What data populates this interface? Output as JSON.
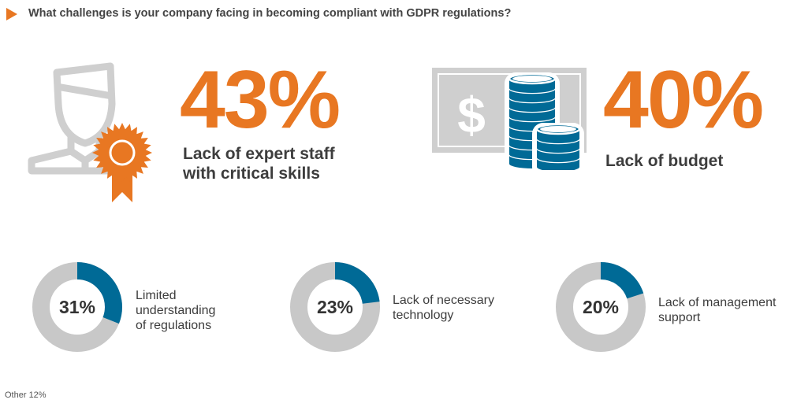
{
  "title": "What challenges is your company facing in becoming compliant with GDPR regulations?",
  "colors": {
    "accent": "#e87722",
    "blue": "#006a96",
    "gray": "#c8c8c8"
  },
  "icons": [
    "play-triangle-icon",
    "expert-person-ribbon-icon",
    "money-coins-icon"
  ],
  "chart_data": {
    "type": "donut",
    "highlights": [
      {
        "value": 43,
        "label_text": "43%",
        "label": [
          "Lack of expert staff",
          "with critical skills"
        ]
      },
      {
        "value": 40,
        "label_text": "40%",
        "label": [
          "Lack of budget"
        ]
      }
    ],
    "donuts": [
      {
        "value": 31,
        "label_text": "31%",
        "label": [
          "Limited",
          "understanding",
          "of regulations"
        ]
      },
      {
        "value": 23,
        "label_text": "23%",
        "label": [
          "Lack of necessary",
          "technology"
        ]
      },
      {
        "value": 20,
        "label_text": "20%",
        "label": [
          "Lack of management",
          "support"
        ]
      }
    ],
    "footnote": "Other 12%"
  }
}
